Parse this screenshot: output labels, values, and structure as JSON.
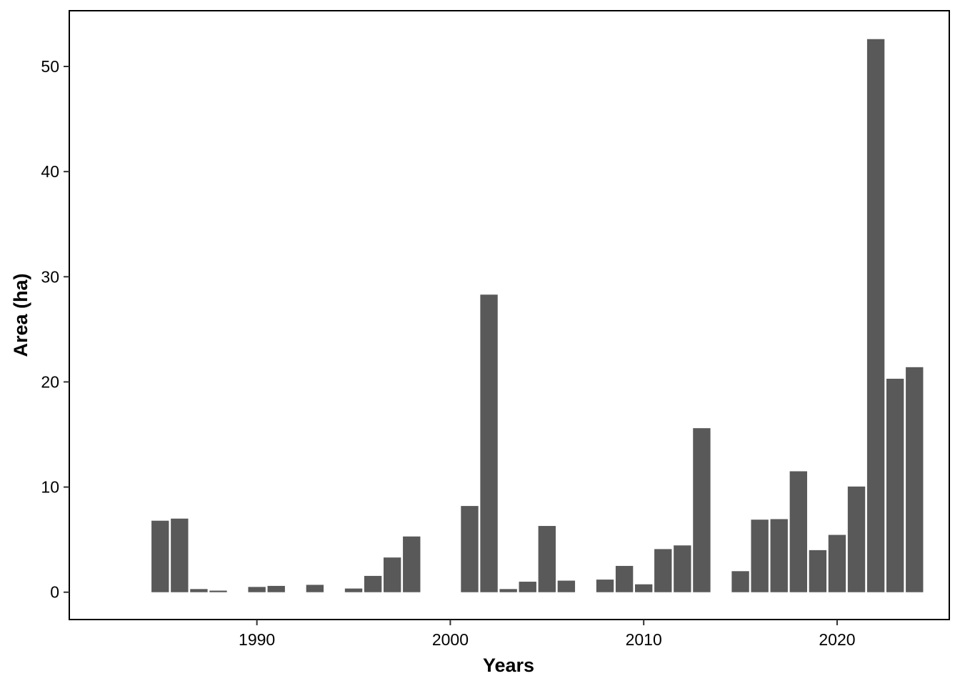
{
  "chart_data": {
    "type": "bar",
    "title": "",
    "xlabel": "Years",
    "ylabel": "Area (ha)",
    "x": [
      1985,
      1986,
      1987,
      1988,
      1990,
      1991,
      1993,
      1995,
      1996,
      1997,
      1998,
      2001,
      2002,
      2003,
      2004,
      2005,
      2006,
      2008,
      2009,
      2010,
      2011,
      2012,
      2013,
      2015,
      2016,
      2017,
      2018,
      2019,
      2020,
      2021,
      2022,
      2023,
      2024
    ],
    "values": [
      6.8,
      7.0,
      0.3,
      0.15,
      0.5,
      0.6,
      0.7,
      0.35,
      1.55,
      3.3,
      5.3,
      8.2,
      28.3,
      0.3,
      1.0,
      6.3,
      1.1,
      1.2,
      2.5,
      0.75,
      4.1,
      4.45,
      15.6,
      2.0,
      6.9,
      6.95,
      11.5,
      4.0,
      5.45,
      10.05,
      52.6,
      20.3,
      21.4
    ],
    "xlim": [
      1980.3,
      2025.8
    ],
    "ylim": [
      -2.6,
      55.3
    ],
    "xticks": [
      "1990",
      "2000",
      "2010",
      "2020"
    ],
    "yticks": [
      "0",
      "10",
      "20",
      "30",
      "40",
      "50"
    ],
    "bar_color": "#595959",
    "grid": false,
    "legend": "none"
  }
}
